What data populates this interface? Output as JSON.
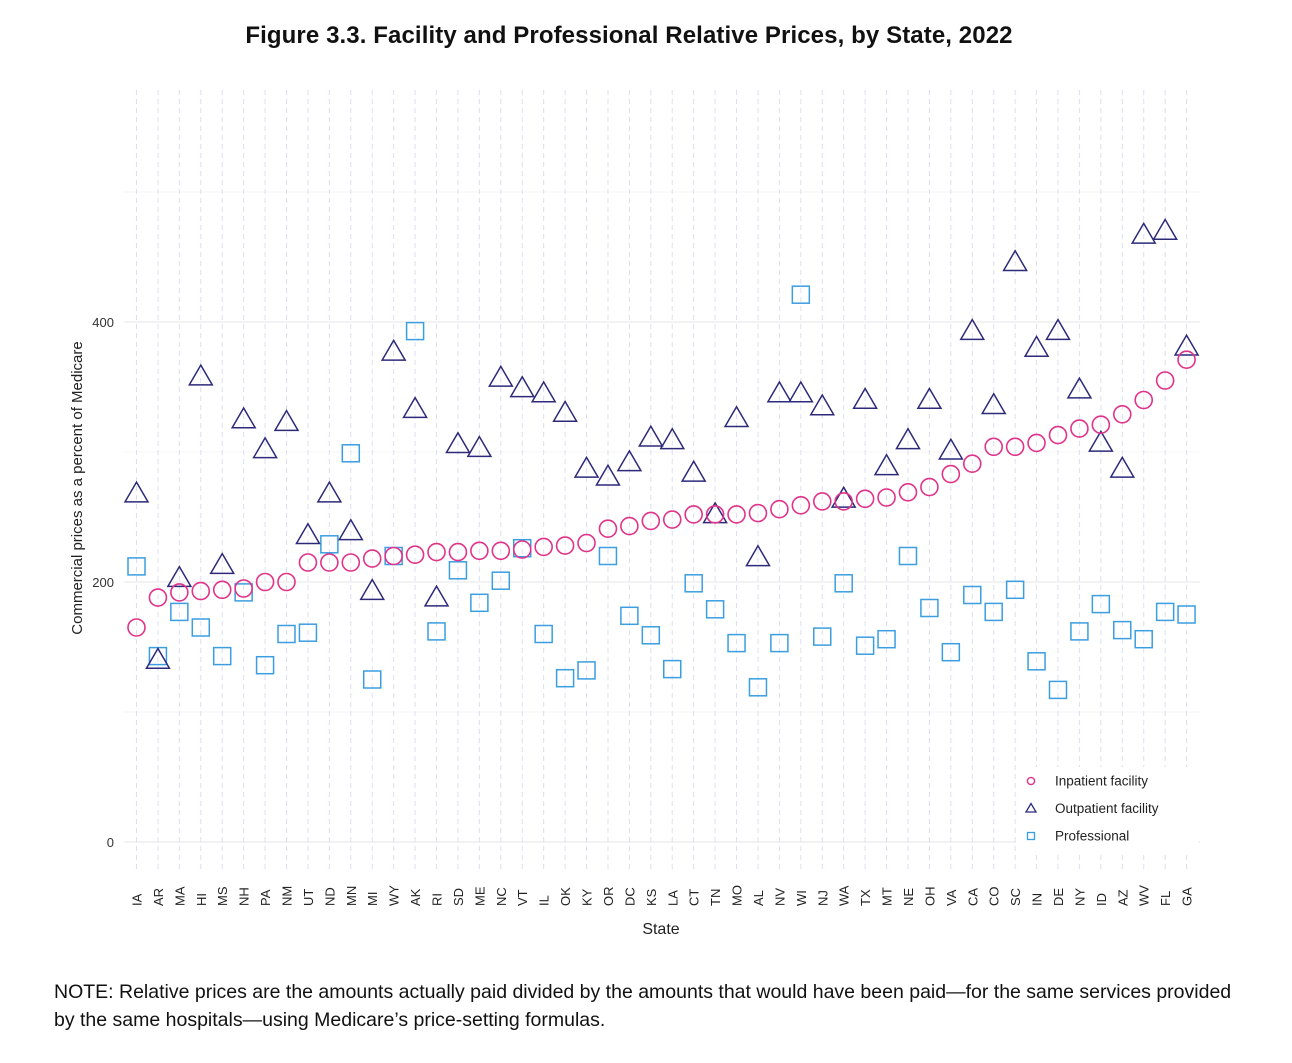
{
  "title": "Figure 3.3. Facility and Professional Relative Prices, by State, 2022",
  "note": "NOTE: Relative prices are the amounts actually paid divided by the amounts that would have been paid—for the same services provided by the same hospitals—using Medicare’s price-setting formulas.",
  "chart_data": {
    "type": "scatter",
    "xlabel": "State",
    "ylabel": "Commercial prices as a percent of Medicare",
    "ylim": [
      -25,
      575
    ],
    "yticks": [
      0,
      200,
      400
    ],
    "grid": true,
    "legend_position": "bottom-right",
    "colors": {
      "inpatient": "#e0338a",
      "outpatient": "#2d2a7a",
      "professional": "#3a9ee0"
    },
    "categories": [
      "IA",
      "AR",
      "MA",
      "HI",
      "MS",
      "NH",
      "PA",
      "NM",
      "UT",
      "ND",
      "MN",
      "MI",
      "WY",
      "AK",
      "RI",
      "SD",
      "ME",
      "NC",
      "VT",
      "IL",
      "OK",
      "KY",
      "OR",
      "DC",
      "KS",
      "LA",
      "CT",
      "TN",
      "MO",
      "AL",
      "NV",
      "WI",
      "NJ",
      "WA",
      "TX",
      "MT",
      "NE",
      "OH",
      "VA",
      "CA",
      "CO",
      "SC",
      "IN",
      "DE",
      "NY",
      "ID",
      "AZ",
      "WV",
      "FL",
      "GA"
    ],
    "series": [
      {
        "name": "Inpatient facility",
        "marker": "circle",
        "values": [
          165,
          188,
          192,
          193,
          194,
          195,
          200,
          200,
          215,
          215,
          215,
          218,
          220,
          221,
          223,
          223,
          224,
          224,
          225,
          227,
          228,
          230,
          241,
          243,
          247,
          248,
          252,
          252,
          252,
          253,
          256,
          259,
          262,
          262,
          264,
          265,
          269,
          273,
          283,
          291,
          304,
          304,
          307,
          313,
          318,
          321,
          329,
          340,
          355,
          371
        ]
      },
      {
        "name": "Outpatient facility",
        "marker": "triangle",
        "values": [
          268,
          140,
          203,
          358,
          213,
          325,
          302,
          323,
          236,
          268,
          239,
          193,
          377,
          333,
          188,
          306,
          303,
          357,
          349,
          345,
          330,
          287,
          281,
          292,
          311,
          309,
          284,
          252,
          326,
          219,
          345,
          345,
          335,
          264,
          340,
          289,
          309,
          340,
          301,
          393,
          336,
          446,
          380,
          393,
          348,
          307,
          287,
          467,
          470,
          381
        ]
      },
      {
        "name": "Professional",
        "marker": "square",
        "values": [
          212,
          143,
          177,
          165,
          143,
          192,
          136,
          160,
          161,
          229,
          299,
          125,
          220,
          393,
          162,
          209,
          184,
          201,
          226,
          160,
          126,
          132,
          220,
          174,
          159,
          133,
          199,
          179,
          153,
          119,
          153,
          421,
          158,
          199,
          151,
          156,
          220,
          180,
          146,
          190,
          177,
          194,
          139,
          117,
          162,
          183,
          163,
          156,
          177,
          175
        ]
      }
    ]
  }
}
